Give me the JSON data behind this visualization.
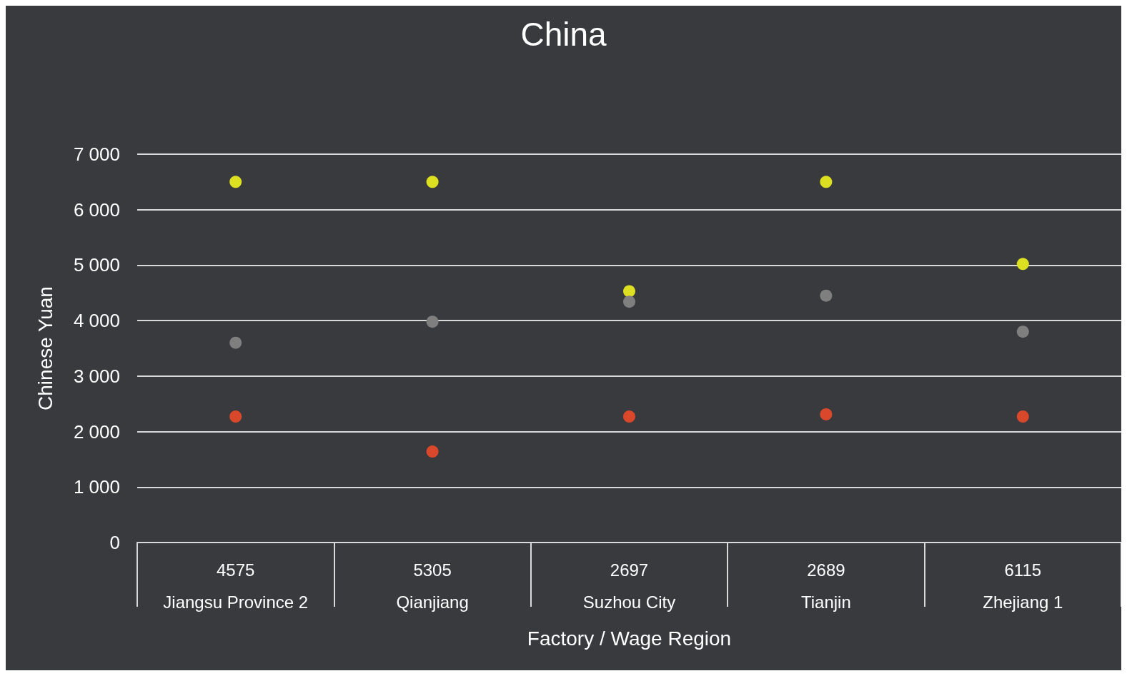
{
  "chart_data": {
    "type": "scatter",
    "title": "China",
    "xlabel": "Factory / Wage Region",
    "ylabel": "Chinese Yuan",
    "categories": [
      "4575\nJiangsu Province 2",
      "5305\nQianjiang",
      "2697\nSuzhou City",
      "2689\nTianjin",
      "6115\nZhejiang 1"
    ],
    "series": [
      {
        "color": "#dde021",
        "values": [
          6500,
          6500,
          4530,
          6500,
          5020
        ]
      },
      {
        "color": "#7f7f7f",
        "values": [
          3600,
          3980,
          4340,
          4450,
          3800
        ]
      },
      {
        "color": "#d9482b",
        "values": [
          2270,
          1640,
          2270,
          2310,
          2270
        ]
      }
    ],
    "ylim": [
      0,
      7000
    ],
    "yticks": [
      0,
      {
        "value": 1000,
        "label": "1 000"
      },
      {
        "value": 2000,
        "label": "2 000"
      },
      {
        "value": 3000,
        "label": "3 000"
      },
      {
        "value": 4000,
        "label": "4 000"
      },
      {
        "value": 5000,
        "label": "5 000"
      },
      {
        "value": 6000,
        "label": "6 000"
      },
      {
        "value": 7000,
        "label": "7 000"
      }
    ],
    "grid": "y",
    "marker": "circle"
  }
}
